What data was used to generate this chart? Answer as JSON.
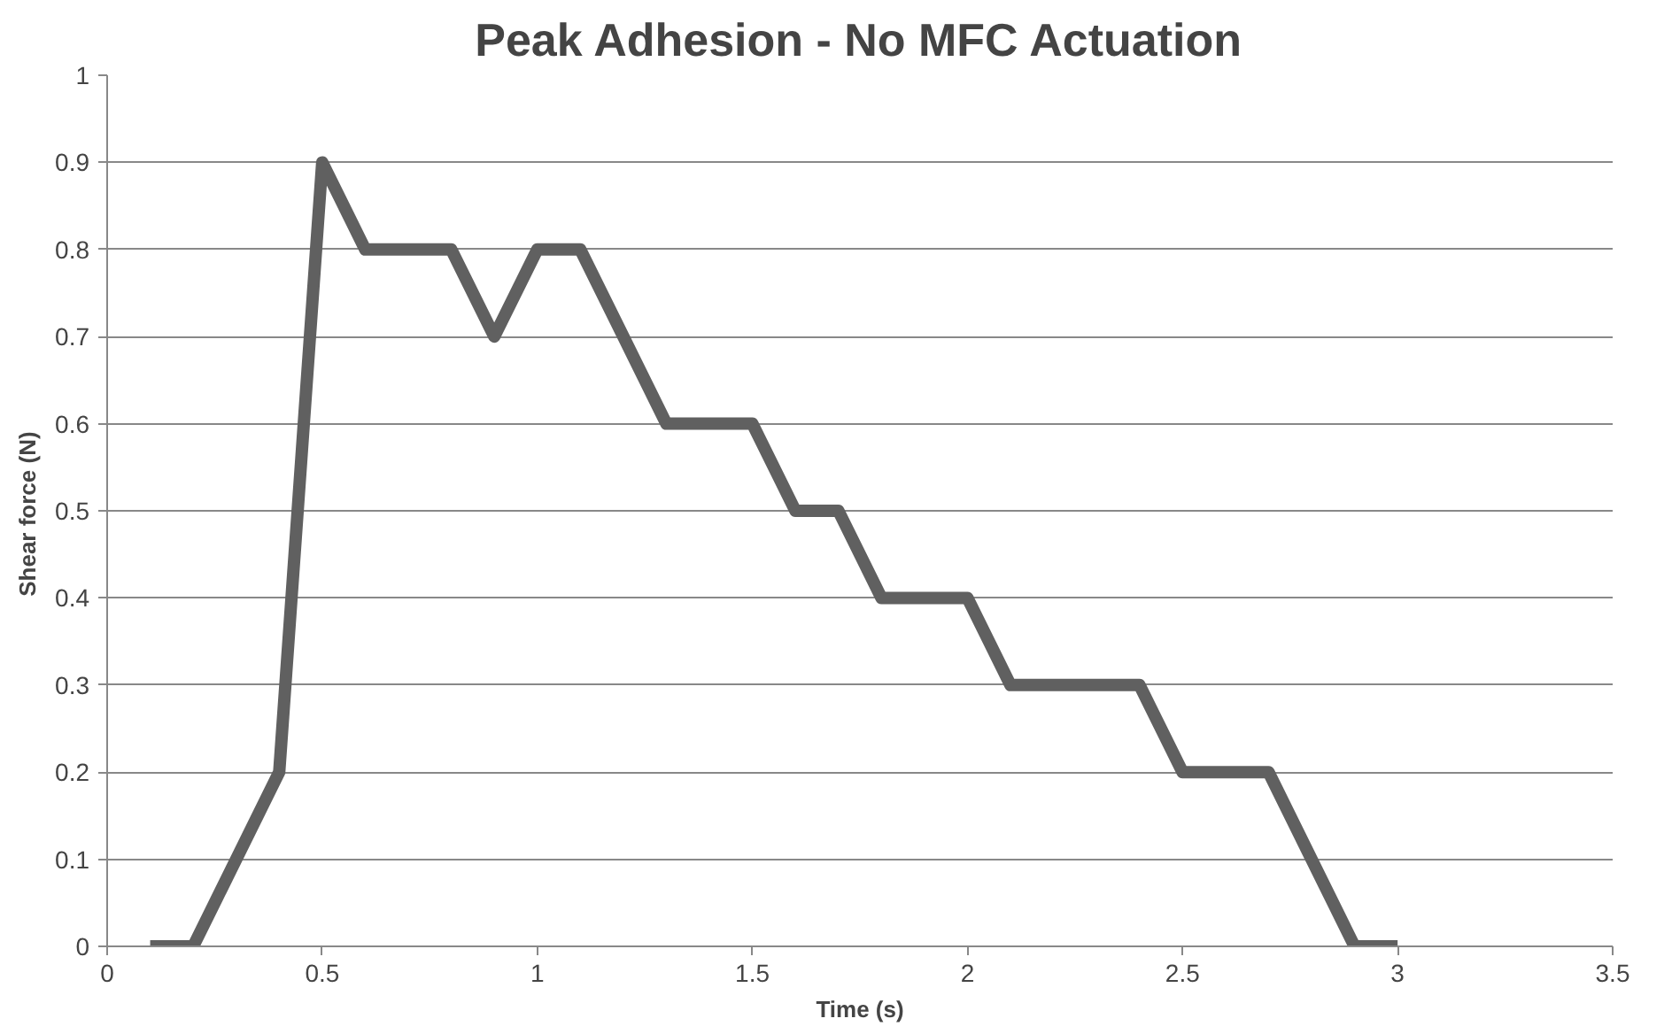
{
  "chart_data": {
    "type": "line",
    "title": "Peak Adhesion - No MFC Actuation",
    "xlabel": "Time (s)",
    "ylabel": "Shear force  (N)",
    "x": [
      0.1,
      0.2,
      0.3,
      0.4,
      0.5,
      0.6,
      0.7,
      0.8,
      0.9,
      1.0,
      1.1,
      1.2,
      1.3,
      1.4,
      1.5,
      1.6,
      1.7,
      1.8,
      1.9,
      2.0,
      2.1,
      2.2,
      2.3,
      2.4,
      2.5,
      2.6,
      2.7,
      2.8,
      2.9,
      3.0
    ],
    "series": [
      {
        "color": "#606060",
        "values": [
          0,
          0,
          0.1,
          0.2,
          0.9,
          0.8,
          0.8,
          0.8,
          0.7,
          0.8,
          0.8,
          0.7,
          0.6,
          0.6,
          0.6,
          0.5,
          0.5,
          0.4,
          0.4,
          0.4,
          0.3,
          0.3,
          0.3,
          0.3,
          0.2,
          0.2,
          0.2,
          0.1,
          0,
          0
        ]
      }
    ],
    "xlim": [
      0,
      3.5
    ],
    "xticks": [
      0,
      0.5,
      1,
      1.5,
      2,
      2.5,
      3,
      3.5
    ],
    "ylim": [
      0,
      1
    ],
    "yticks": [
      0,
      0.1,
      0.2,
      0.3,
      0.4,
      0.5,
      0.6,
      0.7,
      0.8,
      0.9,
      1
    ],
    "grid": "y"
  }
}
